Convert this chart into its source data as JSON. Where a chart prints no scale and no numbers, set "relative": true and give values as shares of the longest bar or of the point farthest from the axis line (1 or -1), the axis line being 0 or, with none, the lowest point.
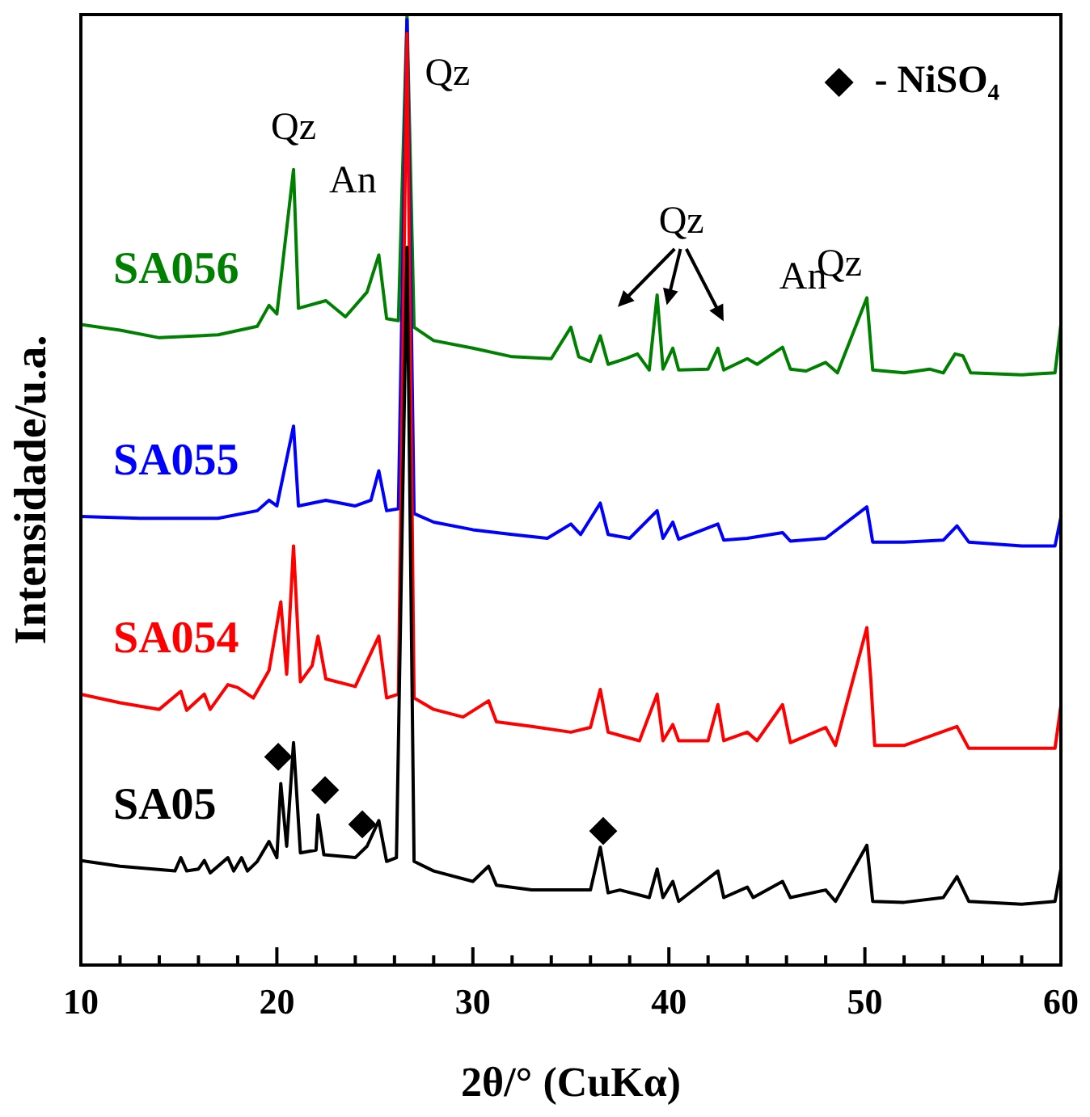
{
  "chart_data": {
    "type": "line",
    "xlabel": "2θ/° (CuKα)",
    "ylabel": "Intensidade/u.a.",
    "relative": true,
    "legend": "top right",
    "xlim": [
      10,
      60
    ],
    "xticks": [
      10,
      {
        "value": 12,
        "label": null
      },
      {
        "value": 14,
        "label": null
      },
      {
        "value": 16,
        "label": null
      },
      {
        "value": 18,
        "label": null
      },
      20,
      {
        "value": 22,
        "label": null
      },
      {
        "value": 24,
        "label": null
      },
      {
        "value": 26,
        "label": null
      },
      {
        "value": 28,
        "label": null
      },
      30,
      {
        "value": 32,
        "label": null
      },
      {
        "value": 34,
        "label": null
      },
      {
        "value": 36,
        "label": null
      },
      {
        "value": 38,
        "label": null
      },
      40,
      {
        "value": 42,
        "label": null
      },
      {
        "value": 44,
        "label": null
      },
      {
        "value": 46,
        "label": null
      },
      {
        "value": 48,
        "label": null
      },
      50,
      {
        "value": 52,
        "label": null
      },
      {
        "value": 54,
        "label": null
      },
      {
        "value": 56,
        "label": null
      },
      {
        "value": 58,
        "label": null
      },
      60
    ],
    "series": [
      {
        "name": "SA05",
        "color": "#000000",
        "marker": "none",
        "x": [
          10,
          12,
          14.8,
          15.1,
          15.4,
          16,
          16.3,
          16.6,
          17.5,
          17.8,
          18.2,
          18.5,
          19,
          19.6,
          20,
          20.2,
          20.5,
          20.85,
          21.2,
          22,
          22.1,
          22.4,
          24,
          24.6,
          25.2,
          25.6,
          26.1,
          26.64,
          27,
          28,
          30,
          30.8,
          31.2,
          33,
          35,
          36,
          36.5,
          36.9,
          37.5,
          39,
          39.4,
          39.7,
          40.2,
          40.5,
          42.5,
          42.8,
          44,
          44.3,
          45.8,
          46.2,
          48,
          48.5,
          50.1,
          50.4,
          52,
          54,
          54.7,
          55.3,
          58,
          59.7,
          60
        ],
        "values": [
          0.11,
          0.104,
          0.099,
          0.113,
          0.099,
          0.101,
          0.11,
          0.097,
          0.113,
          0.099,
          0.113,
          0.099,
          0.109,
          0.13,
          0.113,
          0.191,
          0.125,
          0.234,
          0.118,
          0.121,
          0.158,
          0.116,
          0.113,
          0.125,
          0.152,
          0.109,
          0.113,
          0.755,
          0.109,
          0.099,
          0.088,
          0.104,
          0.084,
          0.079,
          0.079,
          0.079,
          0.124,
          0.076,
          0.079,
          0.071,
          0.101,
          0.071,
          0.088,
          0.067,
          0.099,
          0.071,
          0.082,
          0.071,
          0.088,
          0.071,
          0.079,
          0.067,
          0.126,
          0.067,
          0.066,
          0.071,
          0.093,
          0.067,
          0.064,
          0.067,
          0.101
        ]
      },
      {
        "name": "SA054",
        "color": "#ff0000",
        "marker": "none",
        "x": [
          10,
          12,
          14,
          15.1,
          15.4,
          16.3,
          16.6,
          17.5,
          18,
          18.8,
          19.6,
          20.2,
          20.5,
          20.85,
          21.2,
          21.8,
          22.1,
          22.5,
          24,
          25.2,
          25.6,
          26.2,
          26.64,
          27,
          28,
          29.5,
          30.8,
          31.2,
          33,
          35,
          36,
          36.5,
          36.9,
          38.5,
          39.4,
          39.7,
          40.2,
          40.5,
          42,
          42.5,
          42.8,
          44,
          44.5,
          45.8,
          46.2,
          48,
          48.5,
          50.1,
          50.3,
          50.5,
          52,
          54.7,
          55.3,
          58,
          59.7,
          60
        ],
        "values": [
          0.285,
          0.276,
          0.269,
          0.288,
          0.268,
          0.285,
          0.269,
          0.295,
          0.292,
          0.281,
          0.31,
          0.382,
          0.306,
          0.441,
          0.298,
          0.315,
          0.346,
          0.301,
          0.293,
          0.346,
          0.281,
          0.285,
          0.98,
          0.281,
          0.269,
          0.261,
          0.278,
          0.256,
          0.251,
          0.245,
          0.25,
          0.29,
          0.245,
          0.236,
          0.285,
          0.236,
          0.253,
          0.236,
          0.236,
          0.274,
          0.236,
          0.245,
          0.236,
          0.274,
          0.234,
          0.25,
          0.231,
          0.355,
          0.301,
          0.231,
          0.231,
          0.251,
          0.228,
          0.228,
          0.228,
          0.273
        ]
      },
      {
        "name": "SA055",
        "color": "#0000ff",
        "marker": "none",
        "x": [
          10,
          13,
          17,
          19,
          19.6,
          20,
          20.85,
          21.1,
          22.5,
          24,
          24.8,
          25.2,
          25.6,
          26.2,
          26.64,
          27,
          28,
          30,
          32,
          33.8,
          35,
          35.5,
          36.5,
          36.9,
          38,
          39.4,
          39.7,
          40.2,
          40.5,
          42.5,
          42.8,
          44,
          45.8,
          46.2,
          48,
          50.1,
          50.4,
          52,
          54,
          54.7,
          55.3,
          58,
          59.7,
          60
        ],
        "values": [
          0.472,
          0.47,
          0.47,
          0.478,
          0.489,
          0.483,
          0.567,
          0.483,
          0.489,
          0.483,
          0.489,
          0.52,
          0.478,
          0.48,
          0.995,
          0.475,
          0.466,
          0.458,
          0.453,
          0.449,
          0.464,
          0.453,
          0.486,
          0.453,
          0.449,
          0.478,
          0.449,
          0.466,
          0.448,
          0.464,
          0.447,
          0.449,
          0.455,
          0.446,
          0.449,
          0.482,
          0.445,
          0.445,
          0.447,
          0.462,
          0.445,
          0.441,
          0.441,
          0.471
        ]
      },
      {
        "name": "SA056",
        "color": "#008000",
        "marker": "none",
        "x": [
          10,
          12,
          14,
          17,
          19,
          19.6,
          20,
          20.85,
          21.1,
          22.5,
          23.5,
          24.6,
          25.2,
          25.6,
          26.2,
          26.64,
          27,
          28,
          30,
          32,
          34,
          35,
          35.4,
          36,
          36.5,
          36.9,
          37.8,
          38.4,
          39,
          39.4,
          39.7,
          40.2,
          40.5,
          42,
          42.5,
          42.8,
          44,
          44.5,
          45.8,
          46.2,
          47,
          48,
          48.6,
          50.1,
          50.4,
          52,
          53.3,
          54,
          54.6,
          55,
          55.4,
          58,
          59.7,
          60
        ],
        "values": [
          0.674,
          0.668,
          0.66,
          0.663,
          0.672,
          0.694,
          0.685,
          0.837,
          0.691,
          0.699,
          0.682,
          0.708,
          0.747,
          0.68,
          0.678,
          1,
          0.671,
          0.657,
          0.649,
          0.64,
          0.638,
          0.671,
          0.64,
          0.635,
          0.662,
          0.632,
          0.638,
          0.643,
          0.626,
          0.705,
          0.627,
          0.649,
          0.626,
          0.627,
          0.649,
          0.626,
          0.638,
          0.632,
          0.65,
          0.627,
          0.625,
          0.634,
          0.623,
          0.702,
          0.626,
          0.623,
          0.627,
          0.623,
          0.643,
          0.641,
          0.623,
          0.621,
          0.623,
          0.674
        ]
      },
      {
        "name": "- NiSO₄",
        "type": "scatter",
        "color": "#000000",
        "marker": "diamond",
        "x": [
          20.07,
          22.46,
          24.36,
          36.65
        ],
        "values": [
          0.219,
          0.184,
          0.148,
          0.141
        ]
      }
    ],
    "annotations": [
      {
        "text": "Qz",
        "x": 20.85,
        "y": 0.837
      },
      {
        "text": "An",
        "x": 25.2,
        "y": 0.747
      },
      {
        "text": "Qz",
        "x": 26.64,
        "y": 1
      },
      {
        "text": "Qz",
        "x": 39.4,
        "y": 0.705
      },
      {
        "text": "An",
        "x": 48,
        "y": 0.634
      },
      {
        "text": "Qz",
        "x": 50.1,
        "y": 0.702
      }
    ]
  }
}
